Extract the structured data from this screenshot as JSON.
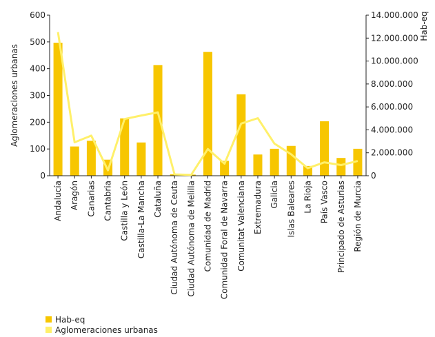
{
  "chart_data": {
    "type": "bar",
    "categories": [
      "Andalucía",
      "Aragón",
      "Canarias",
      "Cantabria",
      "Castilla y León",
      "Castilla-La Mancha",
      "Cataluña",
      "Ciudad Autónoma de Ceuta",
      "Ciudad Autónoma de Melilla",
      "Comunidad de Madrid",
      "Comunidad Foral de Navarra",
      "Comunitat Valenciana",
      "Extremadura",
      "Galicia",
      "Islas Baleares",
      "La Rioja",
      "País Vasco",
      "Principado de Asturias",
      "Región de Murcia"
    ],
    "series": [
      {
        "name": "Hab-eq",
        "kind": "bar",
        "axis": "right",
        "color": "#F7C600",
        "values": [
          11600000,
          2550000,
          3050000,
          1400000,
          5000000,
          2900000,
          9650000,
          130000,
          100000,
          10800000,
          1300000,
          7100000,
          1850000,
          2350000,
          2600000,
          850000,
          4750000,
          1550000,
          2350000
        ]
      },
      {
        "name": "Aglomeraciones urbanas",
        "kind": "line",
        "axis": "left",
        "color": "#FFF06A",
        "values": [
          537,
          125,
          150,
          20,
          212,
          225,
          237,
          5,
          3,
          100,
          45,
          195,
          215,
          120,
          80,
          28,
          50,
          40,
          55
        ]
      }
    ],
    "yleft": {
      "label": "Aglomeraciones urbanas",
      "lim": [
        0,
        600
      ],
      "ticks": [
        "0",
        "100",
        "200",
        "300",
        "400",
        "500",
        "600"
      ],
      "tick_values": [
        0,
        100,
        200,
        300,
        400,
        500,
        600
      ]
    },
    "yright": {
      "label": "Hab-eq",
      "lim": [
        0,
        14000000
      ],
      "ticks": [
        "0",
        "2.000.000",
        "4.000.000",
        "6.000.000",
        "8.000.000",
        "10.000.000",
        "12.000.000",
        "14.000.000"
      ],
      "tick_values": [
        0,
        2000000,
        4000000,
        6000000,
        8000000,
        10000000,
        12000000,
        14000000
      ]
    },
    "grid": false,
    "legend_position": "bottom-left"
  },
  "legend": {
    "bar_label": "Hab-eq",
    "line_label": "Aglomeraciones urbanas"
  }
}
